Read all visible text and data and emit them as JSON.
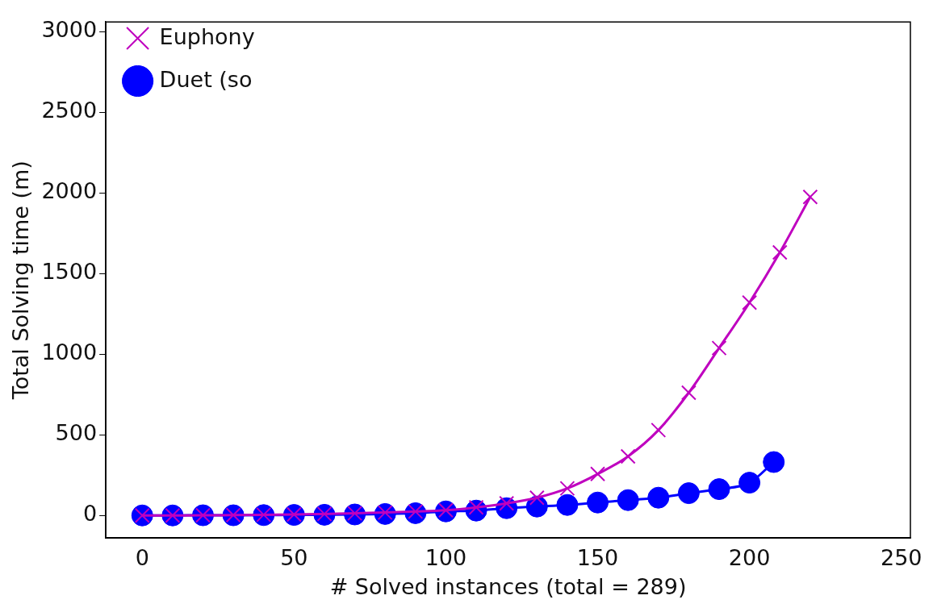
{
  "chart_data": {
    "type": "line",
    "xlabel": "# Solved instances (total = 289)",
    "ylabel": "Total Solving time (m)",
    "xlim": [
      -12,
      253
    ],
    "xticks": [
      0,
      50,
      100,
      150,
      200,
      250
    ],
    "ylim": [
      -140,
      3060
    ],
    "yticks": [
      0,
      500,
      1000,
      1500,
      2000,
      2500,
      3000
    ],
    "grid": false,
    "legend": "top left",
    "series": [
      {
        "name": "Euphony",
        "color": "#bf00bf",
        "marker": "cross",
        "x": [
          0,
          10,
          20,
          30,
          40,
          50,
          60,
          70,
          80,
          90,
          100,
          110,
          120,
          130,
          140,
          150,
          160,
          170,
          180,
          190,
          200,
          210,
          220
        ],
        "values": [
          0,
          0,
          1,
          2,
          4,
          6,
          9,
          13,
          18,
          24,
          32,
          50,
          75,
          110,
          168,
          257,
          366,
          529,
          761,
          1038,
          1320,
          1631,
          1975
        ]
      },
      {
        "name": "Duet (so",
        "color": "#0000ff",
        "marker": "circle",
        "x": [
          0,
          10,
          20,
          30,
          40,
          50,
          60,
          70,
          80,
          90,
          100,
          110,
          120,
          130,
          140,
          150,
          160,
          170,
          180,
          190,
          200,
          208
        ],
        "values": [
          0,
          0,
          1,
          1,
          2,
          3,
          4,
          6,
          9,
          14,
          25,
          30,
          45,
          55,
          65,
          80,
          95,
          110,
          138,
          163,
          203,
          331
        ]
      }
    ]
  }
}
